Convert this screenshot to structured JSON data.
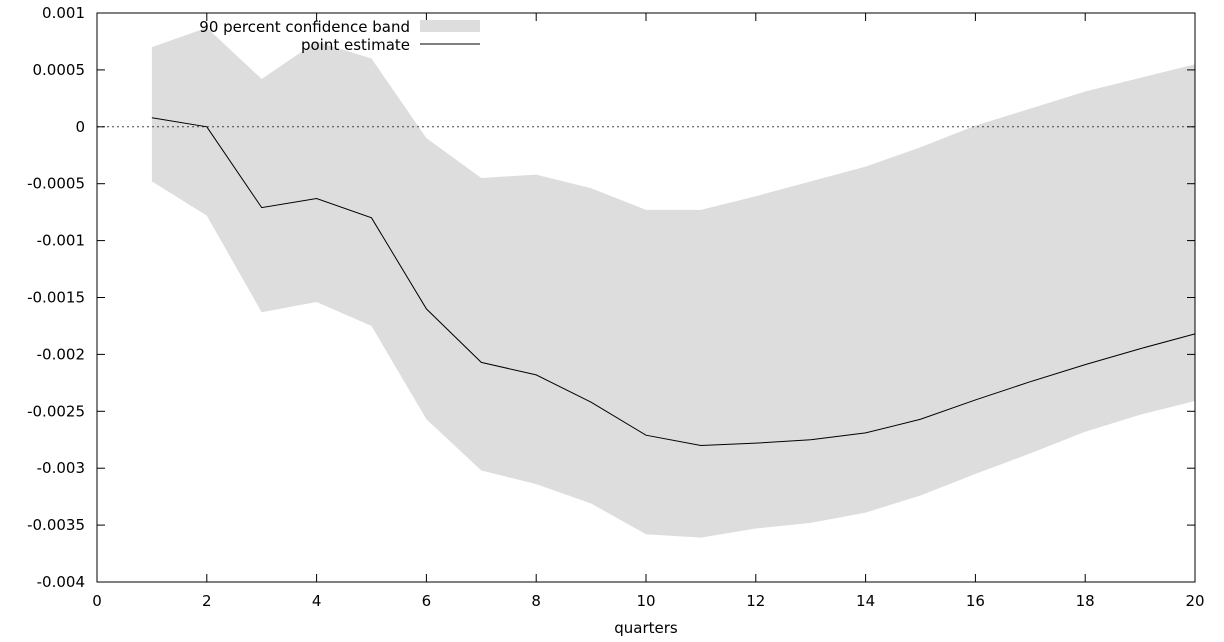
{
  "chart_data": {
    "type": "line",
    "xlabel": "quarters",
    "ylabel": "",
    "xlim": [
      0,
      20
    ],
    "ylim": [
      -0.004,
      0.001
    ],
    "x_ticks": [
      0,
      2,
      4,
      6,
      8,
      10,
      12,
      14,
      16,
      18,
      20
    ],
    "x_tick_labels": [
      "0",
      "2",
      "4",
      "6",
      "8",
      "10",
      "12",
      "14",
      "16",
      "18",
      "20"
    ],
    "y_ticks": [
      0.001,
      0.0005,
      0,
      -0.0005,
      -0.001,
      -0.0015,
      -0.002,
      -0.0025,
      -0.003,
      -0.0035,
      -0.004
    ],
    "y_tick_labels": [
      "0.001",
      "0.0005",
      "0",
      "-0.0005",
      "-0.001",
      "-0.0015",
      "-0.002",
      "-0.0025",
      "-0.003",
      "-0.0035",
      "-0.004"
    ],
    "zero_line": true,
    "legend_position": "top-left",
    "x": [
      1,
      2,
      3,
      4,
      5,
      6,
      7,
      8,
      9,
      10,
      11,
      12,
      13,
      14,
      15,
      16,
      17,
      18,
      19,
      20
    ],
    "band": {
      "name": "90 percent confidence band",
      "color": "#dddddd",
      "upper": [
        0.0007,
        0.00087,
        0.00042,
        0.00075,
        0.0006,
        -0.0001,
        -0.00045,
        -0.00042,
        -0.00054,
        -0.00073,
        -0.00073,
        -0.00061,
        -0.00048,
        -0.00035,
        -0.00018,
        1e-05,
        0.00016,
        0.00031,
        0.00043,
        0.00055
      ],
      "lower": [
        -0.00048,
        -0.00078,
        -0.00163,
        -0.00154,
        -0.00175,
        -0.00257,
        -0.00302,
        -0.00314,
        -0.00331,
        -0.00358,
        -0.00361,
        -0.00353,
        -0.00348,
        -0.00339,
        -0.00324,
        -0.00305,
        -0.00287,
        -0.00268,
        -0.00253,
        -0.00241
      ]
    },
    "series": [
      {
        "name": "point estimate",
        "color": "#000000",
        "values": [
          8e-05,
          0.0,
          -0.00071,
          -0.00063,
          -0.0008,
          -0.0016,
          -0.00207,
          -0.00218,
          -0.00242,
          -0.00271,
          -0.0028,
          -0.00278,
          -0.00275,
          -0.00269,
          -0.00257,
          -0.0024,
          -0.00224,
          -0.00209,
          -0.00195,
          -0.00182
        ]
      }
    ]
  }
}
